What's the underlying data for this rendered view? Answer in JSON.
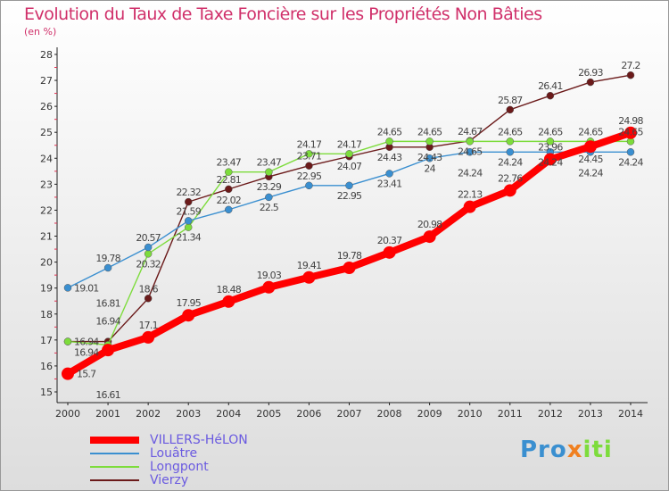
{
  "chart_data": {
    "type": "line",
    "title": "Evolution du Taux de Taxe Foncière sur les Propriétés Non Bâties",
    "ylabel": "(en %)",
    "x": [
      2000,
      2001,
      2002,
      2003,
      2004,
      2005,
      2006,
      2007,
      2008,
      2009,
      2010,
      2011,
      2012,
      2013,
      2014
    ],
    "ylim": [
      15,
      28
    ],
    "yticks": [
      15,
      16,
      17,
      18,
      19,
      20,
      21,
      22,
      23,
      24,
      25,
      26,
      27,
      28
    ],
    "series": [
      {
        "name": "VILLERS-HéLON",
        "color": "#ff0000",
        "values": [
          15.7,
          16.61,
          17.1,
          17.95,
          18.48,
          19.03,
          19.41,
          19.78,
          20.37,
          20.98,
          22.13,
          22.76,
          23.96,
          24.45,
          24.98
        ]
      },
      {
        "name": "Louâtre",
        "color": "#3a8fd0",
        "values": [
          19.01,
          19.78,
          20.57,
          21.59,
          22.02,
          22.5,
          22.95,
          22.95,
          23.41,
          24,
          24.24,
          24.24,
          24.24,
          24.24,
          24.24
        ]
      },
      {
        "name": "Longpont",
        "color": "#7ddc3c",
        "values": [
          16.94,
          16.81,
          20.32,
          21.34,
          23.47,
          23.47,
          24.17,
          24.17,
          24.65,
          24.65,
          24.65,
          24.65,
          24.65,
          24.65,
          24.65
        ]
      },
      {
        "name": "Vierzy",
        "color": "#6b1a1a",
        "values": [
          16.94,
          16.94,
          18.6,
          22.32,
          22.81,
          23.29,
          23.71,
          24.07,
          24.43,
          24.43,
          24.67,
          25.87,
          26.41,
          26.93,
          27.2
        ]
      }
    ]
  },
  "logo": "Proxiti"
}
